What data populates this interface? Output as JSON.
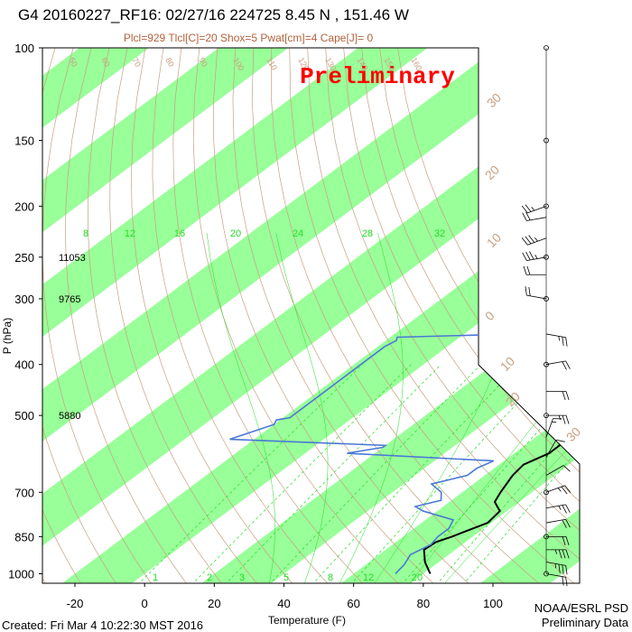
{
  "title": "G4 20160227_RF16: 02/27/16 224725   8.45 N , 151.46 W",
  "subtitle": "Plcl=929 Tlcl[C]=20 Shox=5 Pwat[cm]=4 Cape[J]= 0",
  "watermark": "Preliminary",
  "footer_left": "Created: Fri Mar  4 10:22:30 MST 2016",
  "footer_right_1": "NOAA/ESRL PSD",
  "footer_right_2": "Preliminary Data",
  "chart_data": {
    "type": "line",
    "title": "G4 20160227_RF16: 02/27/16 224725   8.45 N , 151.46 W",
    "xlabel": "Temperature (F)",
    "ylabel": "P (hPa)",
    "xlim": [
      -28,
      113
    ],
    "ylim": [
      1050,
      100
    ],
    "y_scale": "log",
    "x_ticks": [
      -20,
      0,
      20,
      40,
      60,
      80,
      100
    ],
    "y_ticks": [
      100,
      150,
      200,
      250,
      300,
      400,
      500,
      700,
      850,
      1000
    ],
    "heights": [
      {
        "p": 250,
        "label": "11053"
      },
      {
        "p": 300,
        "label": "9765"
      },
      {
        "p": 500,
        "label": "5880"
      }
    ],
    "mixing_ratio_labels": [
      "8",
      "12",
      "16",
      "20",
      "24",
      "28",
      "32"
    ],
    "mixing_ratio_bottom_labels": [
      "1",
      "2",
      "3",
      "5",
      "8",
      "12",
      "20"
    ],
    "right_edge_labels": [
      "30",
      "20",
      "10",
      "0",
      "10",
      "20",
      "30"
    ],
    "dry_adiabat_labels": [
      "50",
      "60",
      "70",
      "80",
      "90",
      "100",
      "110",
      "120",
      "130",
      "140",
      "150",
      "160"
    ],
    "green_band_width_F": 20,
    "colors": {
      "band": "#99ff99",
      "temperature": "#000000",
      "dewpoint": "#4a78d6",
      "adiabat": "#c8a080",
      "mixing": "#22dd22",
      "wind": "#000000"
    },
    "series": [
      {
        "name": "Temperature",
        "points": [
          [
            82,
            1000
          ],
          [
            76,
            950
          ],
          [
            71,
            900
          ],
          [
            71.5,
            870
          ],
          [
            74,
            850
          ],
          [
            79,
            800
          ],
          [
            78,
            760
          ],
          [
            73,
            730
          ],
          [
            71,
            700
          ],
          [
            68,
            650
          ],
          [
            67,
            620
          ],
          [
            70,
            590
          ],
          [
            70,
            560
          ],
          [
            73,
            530
          ],
          [
            71,
            510
          ],
          [
            72,
            480
          ],
          [
            71,
            440
          ],
          [
            70,
            410
          ],
          [
            65,
            380
          ],
          [
            64,
            360
          ],
          [
            61,
            340
          ],
          [
            59,
            320
          ],
          [
            55,
            290
          ],
          [
            51,
            260
          ],
          [
            49,
            245
          ],
          [
            47,
            230
          ],
          [
            43,
            215
          ],
          [
            40,
            200
          ],
          [
            36,
            190
          ]
        ]
      },
      {
        "name": "Dewpoint",
        "points": [
          [
            72,
            1000
          ],
          [
            71,
            960
          ],
          [
            69,
            920
          ],
          [
            71,
            880
          ],
          [
            70,
            850
          ],
          [
            70,
            820
          ],
          [
            68,
            790
          ],
          [
            56,
            760
          ],
          [
            52,
            745
          ],
          [
            57,
            725
          ],
          [
            54,
            700
          ],
          [
            48,
            675
          ],
          [
            55,
            650
          ],
          [
            55,
            630
          ],
          [
            57,
            610
          ],
          [
            12,
            590
          ],
          [
            20,
            575
          ],
          [
            20,
            570
          ],
          [
            -27,
            555
          ],
          [
            -22,
            530
          ],
          [
            -20,
            520
          ],
          [
            -21,
            510
          ],
          [
            -18,
            505
          ],
          [
            -18,
            400
          ],
          [
            -18,
            370
          ],
          [
            -17,
            360
          ],
          [
            -18,
            355
          ],
          [
            15,
            350
          ],
          [
            32,
            340
          ],
          [
            28,
            320
          ],
          [
            19,
            310
          ],
          [
            10,
            300
          ],
          [
            5,
            298
          ],
          [
            20,
            290
          ],
          [
            23,
            270
          ],
          [
            30,
            265
          ],
          [
            23,
            255
          ],
          [
            18,
            250
          ],
          [
            15,
            240
          ],
          [
            12,
            230
          ],
          [
            8,
            225
          ],
          [
            10,
            220
          ],
          [
            11,
            215
          ]
        ]
      }
    ],
    "wind_barbs": [
      {
        "p": 1000,
        "dir": 100,
        "spd": 20
      },
      {
        "p": 950,
        "dir": 100,
        "spd": 25
      },
      {
        "p": 900,
        "dir": 90,
        "spd": 25
      },
      {
        "p": 850,
        "dir": 90,
        "spd": 20
      },
      {
        "p": 800,
        "dir": 80,
        "spd": 20
      },
      {
        "p": 750,
        "dir": 80,
        "spd": 15
      },
      {
        "p": 700,
        "dir": 70,
        "spd": 15
      },
      {
        "p": 650,
        "dir": 60,
        "spd": 10
      },
      {
        "p": 600,
        "dir": 30,
        "spd": 10
      },
      {
        "p": 550,
        "dir": 20,
        "spd": 5
      },
      {
        "p": 500,
        "dir": 90,
        "spd": 15
      },
      {
        "p": 450,
        "dir": 90,
        "spd": 20
      },
      {
        "p": 400,
        "dir": 80,
        "spd": 20
      },
      {
        "p": 350,
        "dir": 100,
        "spd": 15
      },
      {
        "p": 300,
        "dir": 280,
        "spd": 20
      },
      {
        "p": 270,
        "dir": 270,
        "spd": 20
      },
      {
        "p": 250,
        "dir": 260,
        "spd": 25
      },
      {
        "p": 230,
        "dir": 250,
        "spd": 25
      },
      {
        "p": 210,
        "dir": 260,
        "spd": 20
      },
      {
        "p": 200,
        "dir": 250,
        "spd": 15
      }
    ]
  }
}
